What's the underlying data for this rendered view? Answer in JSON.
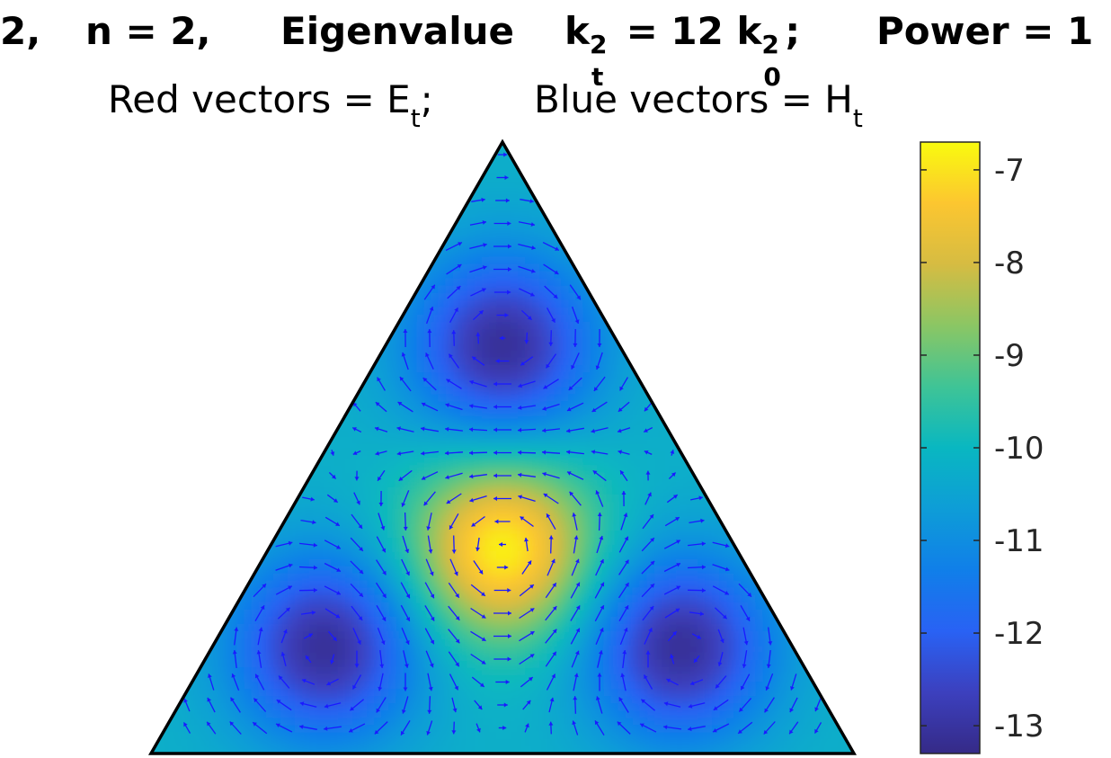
{
  "title": {
    "seg1": "2,",
    "seg2": "n = 2,",
    "eigen_word": "Eigenvalue",
    "k": "k",
    "sup_t": "2",
    "sub_t": "t",
    "eq": "= 12 k",
    "sup_0": "2",
    "sub_0": "0",
    "semi": ";",
    "power": "Power = 1"
  },
  "subtitle": {
    "red_part": "Red vectors = E",
    "red_sub": "t",
    "red_tail": ";",
    "blue_part": "Blue vectors = H",
    "blue_sub": "t"
  },
  "chart_data": {
    "type": "heatmap",
    "colormap": "parula",
    "domain_shape": "equilateral triangle",
    "clim": [
      -13.3,
      -6.7
    ],
    "colorbar": {
      "ticks": [
        -7,
        -8,
        -9,
        -10,
        -11,
        -12,
        -13
      ],
      "tick_labels": [
        "-7",
        "-8",
        "-9",
        "-10",
        "-11",
        "-12",
        "-13"
      ]
    },
    "features": [
      {
        "name": "center maximum",
        "value": -6.8
      },
      {
        "name": "upper minimum",
        "value": -13.1
      },
      {
        "name": "lower-left minimum",
        "value": -13.1
      },
      {
        "name": "lower-right minimum",
        "value": -13.1
      }
    ],
    "vector_color": "#1a1aff",
    "edge_color": "#000000"
  }
}
